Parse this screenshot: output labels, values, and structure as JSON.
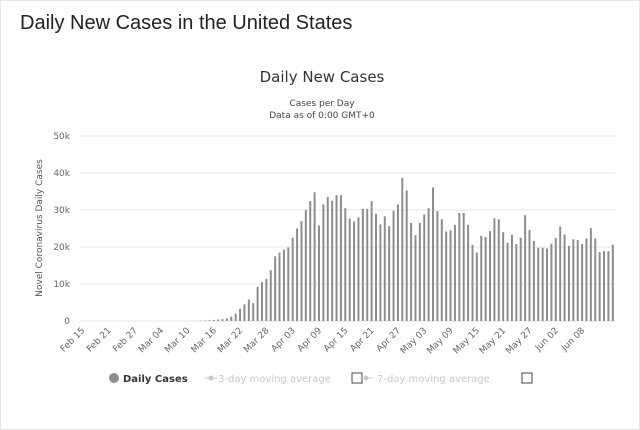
{
  "page": {
    "title": "Daily New Cases in the United States"
  },
  "legend": {
    "items": [
      {
        "label": "Daily Cases",
        "active": true,
        "has_checkbox": false
      },
      {
        "label": "3-day moving average",
        "active": false,
        "has_checkbox": true
      },
      {
        "label": "7-day moving average",
        "active": false,
        "has_checkbox": true
      }
    ]
  },
  "colors": {
    "bar": "#8c8c8c",
    "inactive": "#c8c8c8",
    "grid": "#e6e6e6"
  },
  "chart_data": {
    "type": "bar",
    "title": "Daily New Cases",
    "subtitle_lines": [
      "Cases per Day",
      "Data as of 0:00 GMT+0"
    ],
    "ylabel": "Novel Coronavirus Daily Cases",
    "ylim": [
      0,
      50000
    ],
    "yticks": [
      0,
      10000,
      20000,
      30000,
      40000,
      50000
    ],
    "ytick_labels": [
      "0",
      "10k",
      "20k",
      "30k",
      "40k",
      "50k"
    ],
    "xtick_labels": [
      "Feb 15",
      "Feb 21",
      "Feb 27",
      "Mar 04",
      "Mar 10",
      "Mar 16",
      "Mar 22",
      "Mar 28",
      "Apr 03",
      "Apr 09",
      "Apr 15",
      "Apr 21",
      "Apr 27",
      "May 03",
      "May 09",
      "May 15",
      "May 21",
      "May 27",
      "Jun 02",
      "Jun 08"
    ],
    "start_date": "2020-02-15",
    "grid": true,
    "legend_position": "bottom",
    "series": [
      {
        "name": "Daily Cases",
        "values": [
          0,
          0,
          0,
          0,
          0,
          0,
          0,
          0,
          0,
          0,
          0,
          0,
          0,
          0,
          0,
          0,
          0,
          0,
          0,
          0,
          0,
          0,
          0,
          0,
          0,
          0,
          0,
          50,
          100,
          200,
          300,
          400,
          500,
          700,
          1200,
          2000,
          3300,
          4500,
          5800,
          4800,
          9200,
          10500,
          11400,
          13700,
          17500,
          18500,
          19300,
          19900,
          22500,
          25000,
          27000,
          30000,
          32400,
          34800,
          25800,
          31500,
          33500,
          32500,
          34000,
          34000,
          30500,
          27700,
          26900,
          28000,
          30300,
          30300,
          32400,
          29000,
          26100,
          28300,
          25600,
          29800,
          31500,
          38700,
          35300,
          26500,
          23200,
          26500,
          28800,
          30500,
          36100,
          29700,
          27500,
          24200,
          24500,
          26000,
          29200,
          29200,
          26000,
          20600,
          18500,
          23000,
          22700,
          24300,
          27800,
          27500,
          24000,
          21100,
          23300,
          20800,
          22500,
          28600,
          24600,
          21600,
          19800,
          19800,
          19600,
          20900,
          22400,
          25500,
          23400,
          20300,
          22100,
          21900,
          20800,
          22300,
          25100,
          22300,
          18600,
          18900,
          18900,
          20600
        ]
      }
    ]
  }
}
